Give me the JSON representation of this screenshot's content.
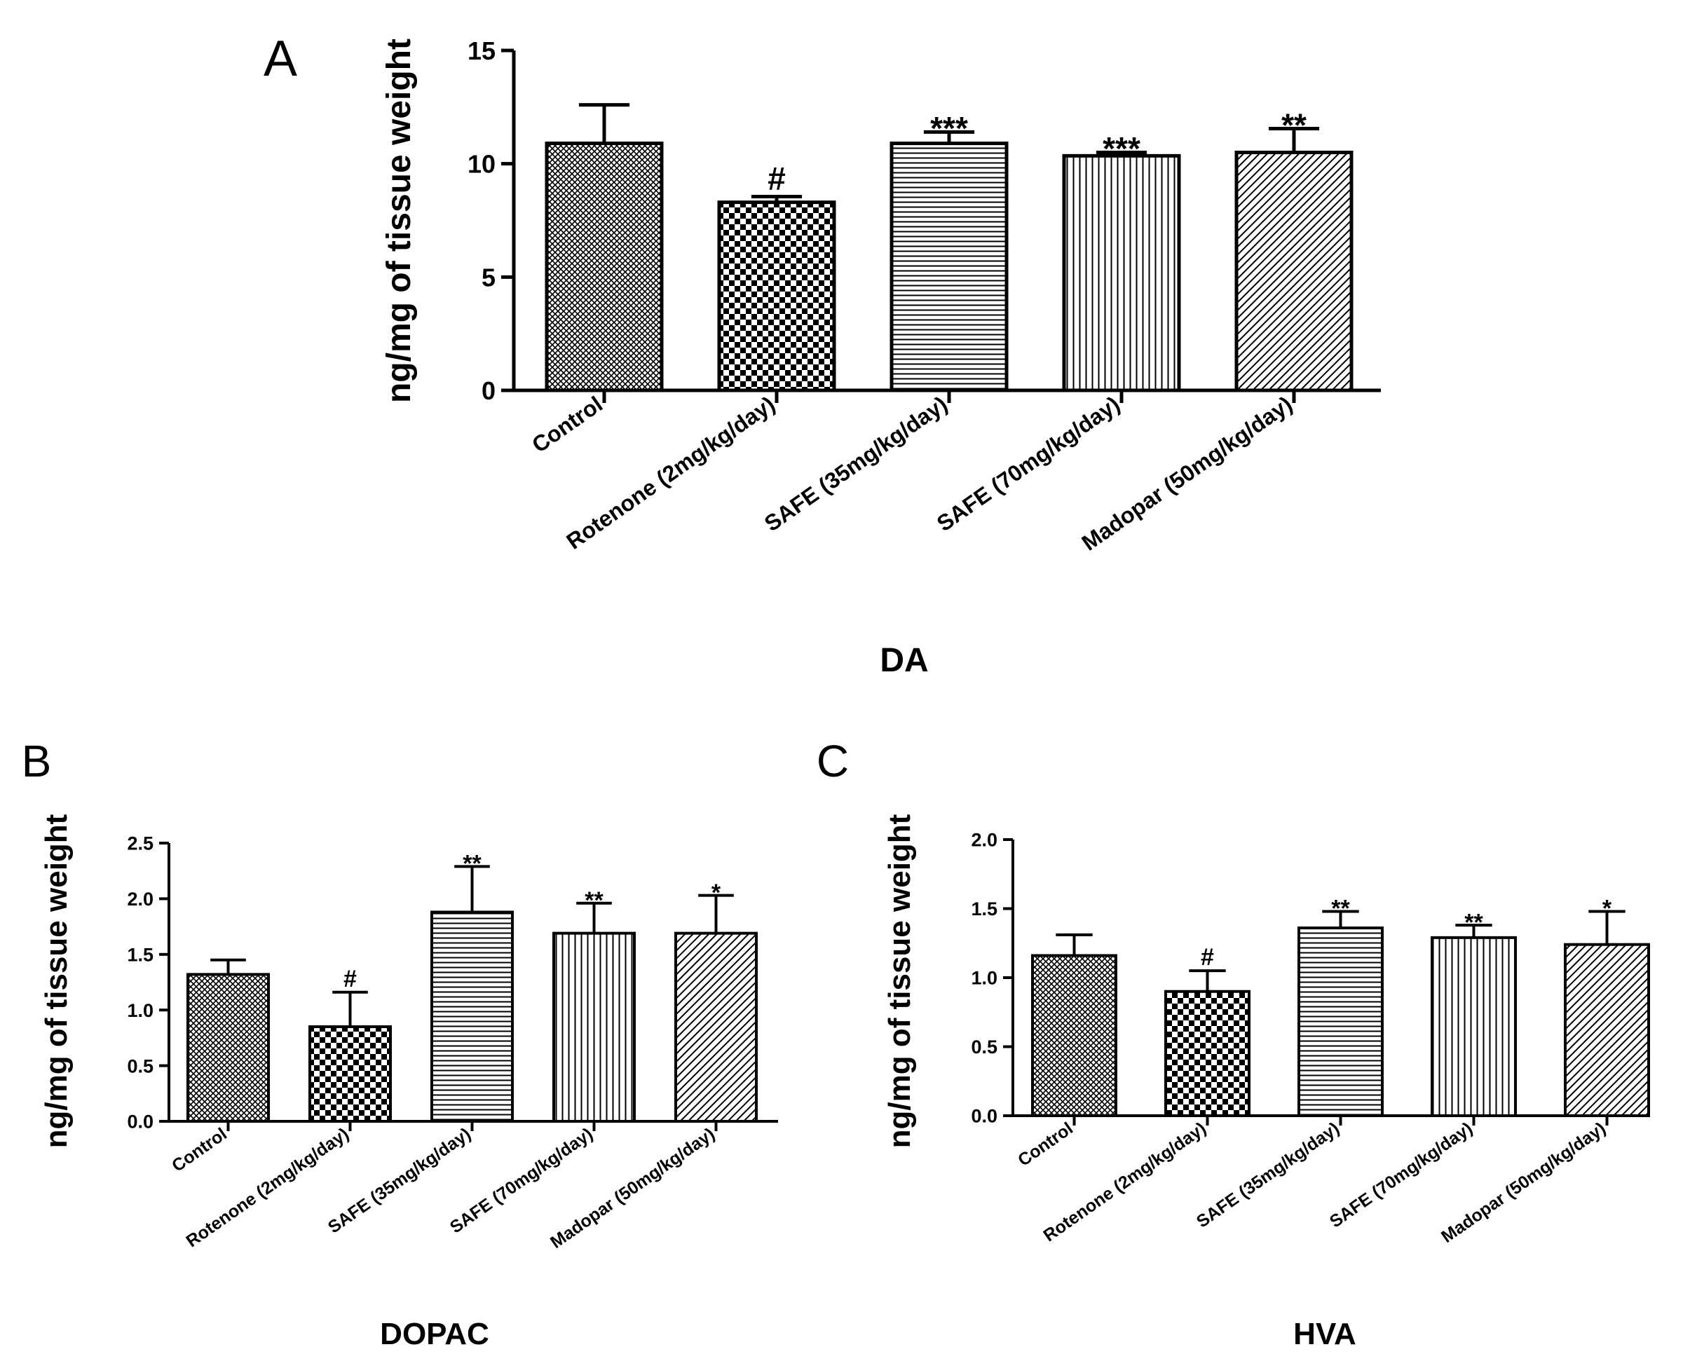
{
  "chart_data": [
    {
      "type": "bar",
      "panel_label": "A",
      "title": "DA",
      "ylabel": "ng/mg of tissue weight",
      "ylim": [
        0,
        15
      ],
      "yticks": [
        "0",
        "5",
        "10",
        "15"
      ],
      "categories": [
        "Control",
        "Rotenone (2mg/kg/day)",
        "SAFE (35mg/kg/day)",
        "SAFE (70mg/kg/day)",
        "Madopar (50mg/kg/day)"
      ],
      "values": [
        10.9,
        8.3,
        10.9,
        10.35,
        10.5
      ],
      "errors": [
        1.7,
        0.25,
        0.5,
        0.15,
        1.05
      ],
      "annotations": [
        "",
        "#",
        "***",
        "***",
        "**"
      ],
      "patterns": [
        "crosshatch",
        "checker",
        "horizontal",
        "vertical",
        "diagonal"
      ],
      "grid": false,
      "legend": "none"
    },
    {
      "type": "bar",
      "panel_label": "B",
      "title": "DOPAC",
      "ylabel": "ng/mg of tissue weight",
      "ylim": [
        0,
        2.5
      ],
      "yticks": [
        "0.0",
        "0.5",
        "1.0",
        "1.5",
        "2.0",
        "2.5"
      ],
      "categories": [
        "Control",
        "Rotenone (2mg/kg/day)",
        "SAFE (35mg/kg/day)",
        "SAFE (70mg/kg/day)",
        "Madopar (50mg/kg/day)"
      ],
      "values": [
        1.32,
        0.85,
        1.88,
        1.69,
        1.69
      ],
      "errors": [
        0.13,
        0.31,
        0.41,
        0.27,
        0.34
      ],
      "annotations": [
        "",
        "#",
        "**",
        "**",
        "*"
      ],
      "patterns": [
        "crosshatch",
        "checker",
        "horizontal",
        "vertical",
        "diagonal"
      ],
      "grid": false,
      "legend": "none"
    },
    {
      "type": "bar",
      "panel_label": "C",
      "title": "HVA",
      "ylabel": "ng/mg of tissue weight",
      "ylim": [
        0,
        2.0
      ],
      "yticks": [
        "0.0",
        "0.5",
        "1.0",
        "1.5",
        "2.0"
      ],
      "categories": [
        "Control",
        "Rotenone (2mg/kg/day)",
        "SAFE (35mg/kg/day)",
        "SAFE (70mg/kg/day)",
        "Madopar (50mg/kg/day)"
      ],
      "values": [
        1.16,
        0.9,
        1.36,
        1.29,
        1.24
      ],
      "errors": [
        0.15,
        0.15,
        0.12,
        0.09,
        0.24
      ],
      "annotations": [
        "",
        "#",
        "**",
        "**",
        "*"
      ],
      "patterns": [
        "crosshatch",
        "checker",
        "horizontal",
        "vertical",
        "diagonal"
      ],
      "grid": false,
      "legend": "none"
    }
  ]
}
